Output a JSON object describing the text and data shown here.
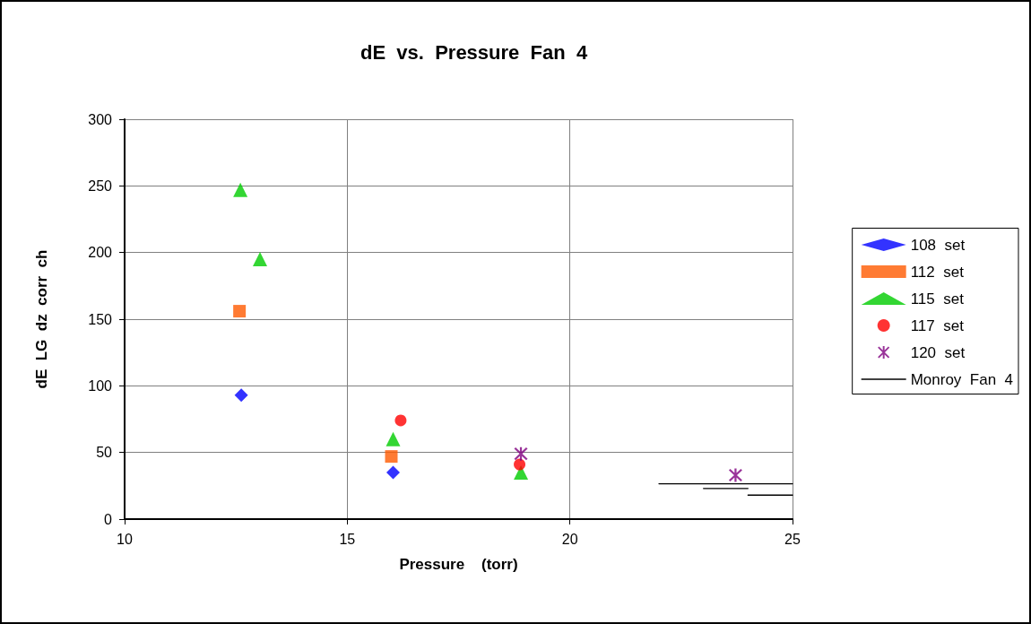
{
  "chart_data": {
    "type": "scatter",
    "title": "dE  vs.  Pressure  Fan  4",
    "xlabel": "Pressure    (torr)",
    "ylabel": "dE  LG  dz  corr  ch",
    "xlim": [
      10,
      25
    ],
    "xticks": [
      10,
      15,
      20,
      25
    ],
    "ylim": [
      0,
      300
    ],
    "yticks": [
      0,
      50,
      100,
      150,
      200,
      250,
      300
    ],
    "grid": true,
    "legend": "right",
    "series": [
      {
        "name": "108  set",
        "color": "#0000ff",
        "marker": "diamond",
        "x": [
          12.62,
          16.03
        ],
        "values": [
          93,
          35
        ]
      },
      {
        "name": "112  set",
        "color": "#ff5a00",
        "marker": "square",
        "x": [
          12.58,
          15.99
        ],
        "values": [
          156,
          47
        ]
      },
      {
        "name": "115  set",
        "color": "#00cc00",
        "marker": "triangle",
        "x": [
          12.6,
          13.04,
          16.03,
          18.9
        ],
        "values": [
          247,
          195,
          60,
          35
        ]
      },
      {
        "name": "117  set",
        "color": "#ff0000",
        "marker": "circle",
        "x": [
          16.2,
          18.87
        ],
        "values": [
          74,
          41
        ]
      },
      {
        "name": "120  set",
        "color": "#800080",
        "marker": "cross",
        "x": [
          18.9,
          23.72
        ],
        "values": [
          49,
          33
        ]
      },
      {
        "name": "Monroy  Fan  4",
        "type": "line",
        "color": "#000000",
        "marker": "none",
        "line_style": "solid",
        "x": [
          22,
          25,
          null,
          23,
          24,
          null,
          24,
          25
        ],
        "values": [
          26.5,
          26.5,
          null,
          23,
          23,
          null,
          18,
          18
        ]
      }
    ]
  }
}
